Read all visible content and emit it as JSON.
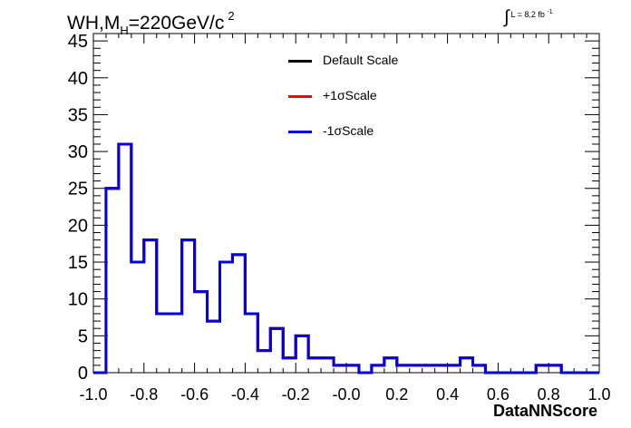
{
  "title": {
    "main": "WH,M",
    "sub": "H",
    "rest": "=220GeV/c",
    "sup": "2"
  },
  "lumi": {
    "integral": "∫",
    "text": "L = 8.2 fb",
    "sup": "-1"
  },
  "colors": {
    "default": "#000000",
    "plus": "#ff0000",
    "minus": "#0000e6"
  },
  "legend": [
    {
      "label": "Default Scale",
      "color": "#000000"
    },
    {
      "label": "+1σScale",
      "color": "#ff0000"
    },
    {
      "label": "-1σScale",
      "color": "#0000e6"
    }
  ],
  "chart_data": {
    "type": "line",
    "xlabel": "DataNNScore",
    "ylabel": "",
    "xlim": [
      -1.0,
      1.0
    ],
    "ylim": [
      0,
      46
    ],
    "x_ticks": [
      -1.0,
      -0.8,
      -0.6,
      -0.4,
      -0.2,
      0.0,
      0.2,
      0.4,
      0.6,
      0.8,
      1.0
    ],
    "x_tick_labels": [
      "-1.0",
      "-0.8",
      "-0.6",
      "-0.4",
      "-0.2",
      "-0.0",
      "0.2",
      "0.4",
      "0.6",
      "0.8",
      "1.0"
    ],
    "y_ticks": [
      0,
      5,
      10,
      15,
      20,
      25,
      30,
      35,
      40,
      45
    ],
    "y_tick_labels": [
      "0",
      "5",
      "10",
      "15",
      "20",
      "25",
      "30",
      "35",
      "40",
      "45"
    ],
    "bin_edges": [
      -1.0,
      -0.95,
      -0.9,
      -0.85,
      -0.8,
      -0.75,
      -0.7,
      -0.65,
      -0.6,
      -0.55,
      -0.5,
      -0.45,
      -0.4,
      -0.35,
      -0.3,
      -0.25,
      -0.2,
      -0.15,
      -0.1,
      -0.05,
      0.0,
      0.05,
      0.1,
      0.15,
      0.2,
      0.25,
      0.3,
      0.35,
      0.4,
      0.45,
      0.5,
      0.55,
      0.6,
      0.65,
      0.7,
      0.75,
      0.8,
      0.85,
      0.9,
      0.95,
      1.0
    ],
    "series": [
      {
        "name": "Default Scale",
        "color": "#000000",
        "values": [
          0,
          25,
          31,
          15,
          18,
          8,
          8,
          18,
          11,
          7,
          15,
          16,
          8,
          3,
          6,
          2,
          5,
          2,
          2,
          1,
          1,
          0,
          1,
          2,
          1,
          1,
          1,
          1,
          1,
          2,
          1,
          0,
          0,
          0,
          0,
          1,
          1,
          0,
          0,
          0
        ]
      },
      {
        "name": "+1σScale",
        "color": "#ff0000",
        "values": [
          0,
          25,
          31,
          15,
          18,
          8,
          8,
          18,
          11,
          7,
          15,
          16,
          8,
          3,
          6,
          2,
          5,
          2,
          2,
          1,
          1,
          0,
          1,
          2,
          1,
          1,
          1,
          1,
          1,
          2,
          1,
          0,
          0,
          0,
          0,
          1,
          1,
          0,
          0,
          0
        ]
      },
      {
        "name": "-1σScale",
        "color": "#0000e6",
        "values": [
          0,
          25,
          31,
          15,
          18,
          8,
          8,
          18,
          11,
          7,
          15,
          16,
          8,
          3,
          6,
          2,
          5,
          2,
          2,
          1,
          1,
          0,
          1,
          2,
          1,
          1,
          1,
          1,
          1,
          2,
          1,
          0,
          0,
          0,
          0,
          1,
          1,
          0,
          0,
          0
        ]
      }
    ],
    "grid": false,
    "legend_position": "top-center"
  }
}
